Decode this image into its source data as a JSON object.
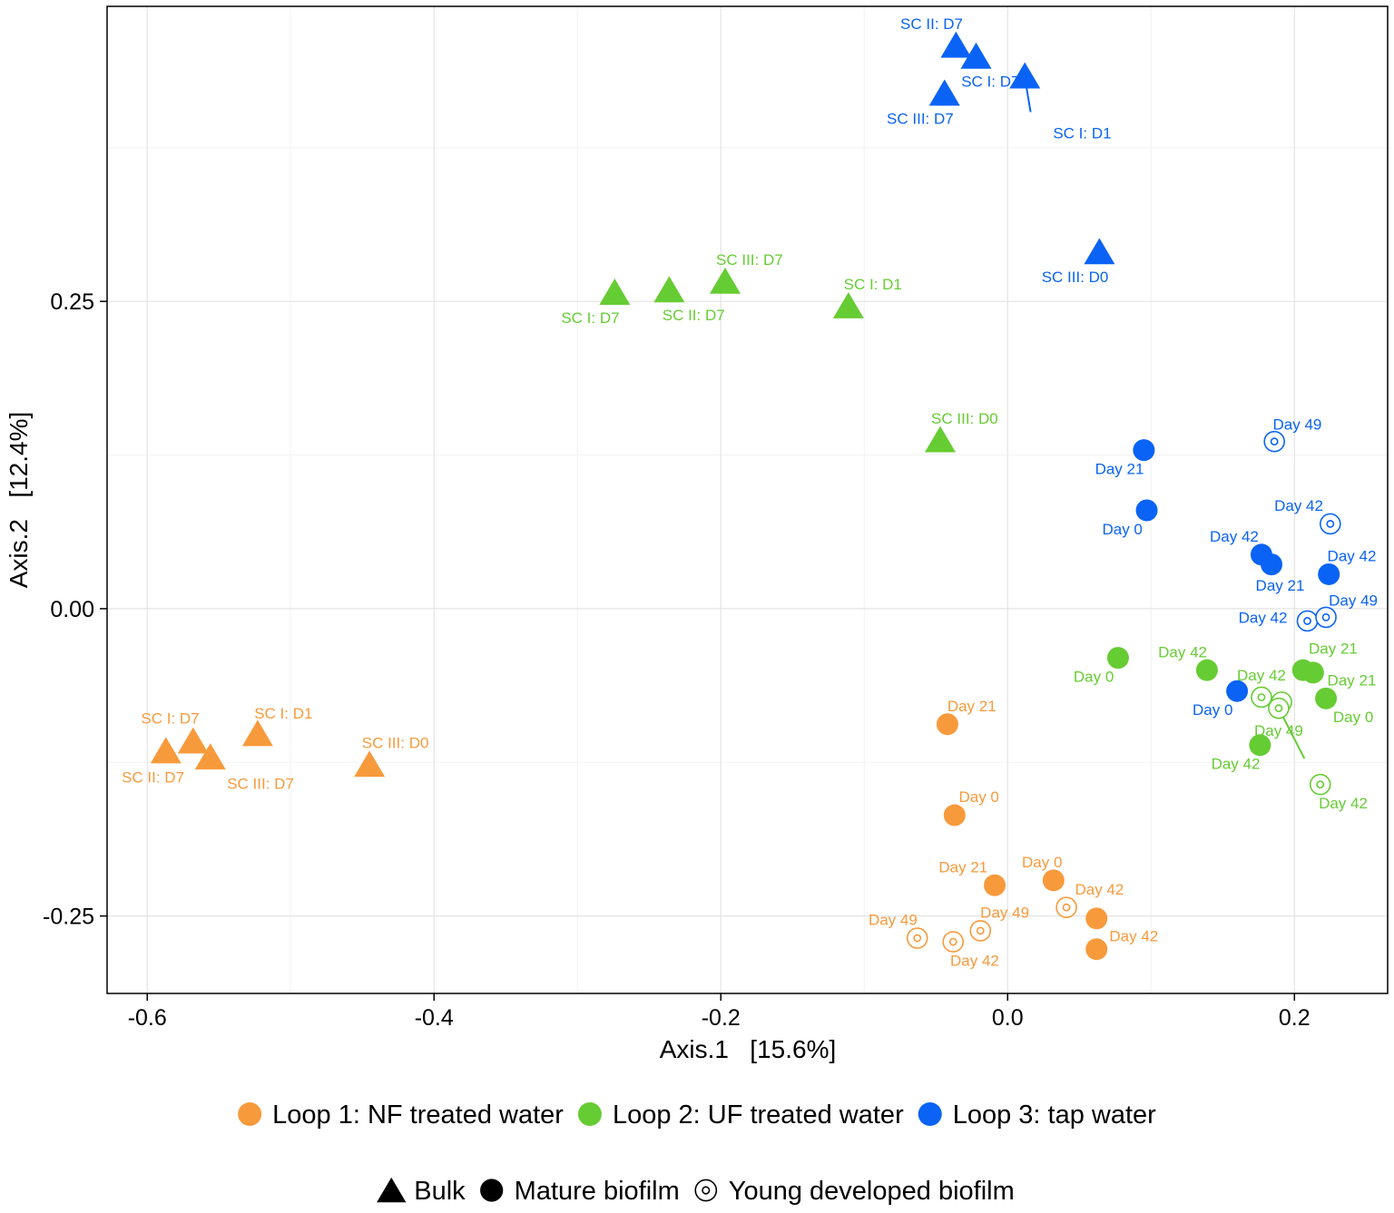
{
  "colors": {
    "orange": "#F79A3C",
    "green": "#66CC33",
    "blue": "#0A63F5"
  },
  "chart_data": {
    "type": "scatter",
    "title": "",
    "xlabel": "Axis.1   [15.6%]",
    "ylabel": "Axis.2   [12.4%]",
    "xlim": [
      -0.628,
      0.265
    ],
    "ylim": [
      -0.313,
      0.49
    ],
    "x_ticks": [
      {
        "v": -0.6,
        "label": "-0.6"
      },
      {
        "v": -0.4,
        "label": "-0.4"
      },
      {
        "v": -0.2,
        "label": "-0.2"
      },
      {
        "v": 0.0,
        "label": "0.0"
      },
      {
        "v": 0.2,
        "label": "0.2"
      }
    ],
    "y_ticks": [
      {
        "v": 0.25,
        "label": "0.25"
      },
      {
        "v": 0.0,
        "label": "0.00"
      },
      {
        "v": -0.25,
        "label": "-0.25"
      }
    ],
    "grid": true,
    "legend_color": {
      "placement": "bottom",
      "items": [
        {
          "label": "Loop 1: NF treated water",
          "color": "orange"
        },
        {
          "label": "Loop 2: UF treated water",
          "color": "green"
        },
        {
          "label": "Loop 3: tap water",
          "color": "blue"
        }
      ]
    },
    "legend_shape": {
      "placement": "bottom",
      "items": [
        {
          "label": "Bulk",
          "shape": "triangle"
        },
        {
          "label": "Mature biofilm",
          "shape": "circle"
        },
        {
          "label": "Young developed biofilm",
          "shape": "ring"
        }
      ]
    },
    "series": [
      {
        "name": "Loop 1: NF treated water",
        "color": "orange",
        "points": [
          {
            "x": -0.587,
            "y": -0.117,
            "shape": "triangle",
            "label": "SC II: D7",
            "ldx": -0.009,
            "ldy": -0.02
          },
          {
            "x": -0.568,
            "y": -0.109,
            "shape": "triangle",
            "label": "SC I: D7",
            "ldx": -0.016,
            "ldy": 0.02
          },
          {
            "x": -0.556,
            "y": -0.122,
            "shape": "triangle",
            "label": "SC III: D7",
            "ldx": 0.035,
            "ldy": -0.02
          },
          {
            "x": -0.523,
            "y": -0.103,
            "shape": "triangle",
            "label": "SC I: D1",
            "ldx": 0.018,
            "ldy": 0.018
          },
          {
            "x": -0.445,
            "y": -0.128,
            "shape": "triangle",
            "label": "SC III: D0",
            "ldx": 0.018,
            "ldy": 0.019
          },
          {
            "x": -0.042,
            "y": -0.094,
            "shape": "circle",
            "label": "Day 21",
            "ldx": 0.017,
            "ldy": 0.015
          },
          {
            "x": -0.037,
            "y": -0.168,
            "shape": "circle",
            "label": "Day 0",
            "ldx": 0.017,
            "ldy": 0.015
          },
          {
            "x": -0.009,
            "y": -0.225,
            "shape": "circle",
            "label": "Day 21",
            "ldx": -0.022,
            "ldy": 0.015
          },
          {
            "x": 0.032,
            "y": -0.221,
            "shape": "circle",
            "label": "Day 0",
            "ldx": -0.008,
            "ldy": 0.015
          },
          {
            "x": 0.062,
            "y": -0.252,
            "shape": "circle",
            "label": "Day 42",
            "ldx": 0.002,
            "ldy": 0.024
          },
          {
            "x": 0.062,
            "y": -0.277,
            "shape": "circle",
            "label": "Day 42",
            "ldx": 0.026,
            "ldy": 0.011
          },
          {
            "x": -0.063,
            "y": -0.268,
            "shape": "ring",
            "label": "Day 49",
            "ldx": -0.017,
            "ldy": 0.015
          },
          {
            "x": -0.038,
            "y": -0.271,
            "shape": "ring",
            "label": "Day 42",
            "ldx": 0.015,
            "ldy": -0.015
          },
          {
            "x": -0.019,
            "y": -0.262,
            "shape": "ring",
            "label": "Day 49",
            "ldx": 0.017,
            "ldy": 0.015
          },
          {
            "x": 0.041,
            "y": -0.243,
            "shape": "ring",
            "label": "",
            "ldx": 0.0,
            "ldy": 0.0
          }
        ]
      },
      {
        "name": "Loop 2: UF treated water",
        "color": "green",
        "points": [
          {
            "x": -0.274,
            "y": 0.256,
            "shape": "triangle",
            "label": "SC I: D7",
            "ldx": -0.017,
            "ldy": -0.019
          },
          {
            "x": -0.236,
            "y": 0.258,
            "shape": "triangle",
            "label": "SC II: D7",
            "ldx": 0.017,
            "ldy": -0.019
          },
          {
            "x": -0.197,
            "y": 0.265,
            "shape": "triangle",
            "label": "SC III: D7",
            "ldx": 0.017,
            "ldy": 0.019
          },
          {
            "x": -0.111,
            "y": 0.245,
            "shape": "triangle",
            "label": "SC I: D1",
            "ldx": 0.017,
            "ldy": 0.019
          },
          {
            "x": -0.047,
            "y": 0.136,
            "shape": "triangle",
            "label": "SC III: D0",
            "ldx": 0.017,
            "ldy": 0.019
          },
          {
            "x": 0.077,
            "y": -0.04,
            "shape": "circle",
            "label": "Day 0",
            "ldx": -0.017,
            "ldy": -0.015
          },
          {
            "x": 0.139,
            "y": -0.05,
            "shape": "circle",
            "label": "Day 42",
            "ldx": -0.017,
            "ldy": 0.015
          },
          {
            "x": 0.176,
            "y": -0.111,
            "shape": "circle",
            "label": "Day 42",
            "ldx": -0.017,
            "ldy": -0.015
          },
          {
            "x": 0.206,
            "y": -0.05,
            "shape": "circle",
            "label": "Day 21",
            "ldx": 0.021,
            "ldy": 0.018
          },
          {
            "x": 0.213,
            "y": -0.052,
            "shape": "circle",
            "label": "Day 21",
            "ldx": 0.027,
            "ldy": -0.006
          },
          {
            "x": 0.222,
            "y": -0.073,
            "shape": "circle",
            "label": "Day 0",
            "ldx": 0.019,
            "ldy": -0.015
          },
          {
            "x": 0.177,
            "y": -0.072,
            "shape": "ring",
            "label": "Day 42",
            "ldx": 0.0,
            "ldy": 0.018
          },
          {
            "x": 0.191,
            "y": -0.076,
            "shape": "ring",
            "label": "",
            "ldx": 0.0,
            "ldy": 0.0
          },
          {
            "x": 0.189,
            "y": -0.081,
            "shape": "ring",
            "label": "Day 49",
            "ldx": 0.0,
            "ldy": -0.018
          },
          {
            "x": 0.218,
            "y": -0.143,
            "shape": "ring",
            "label": "Day 42",
            "ldx": 0.016,
            "ldy": -0.015
          }
        ]
      },
      {
        "name": "Loop 3: tap water",
        "color": "blue",
        "points": [
          {
            "x": -0.036,
            "y": 0.457,
            "shape": "triangle",
            "label": "SC II: D7",
            "ldx": -0.017,
            "ldy": 0.019
          },
          {
            "x": -0.022,
            "y": 0.448,
            "shape": "triangle",
            "label": "SC I: D7",
            "ldx": 0.01,
            "ldy": -0.019
          },
          {
            "x": -0.044,
            "y": 0.418,
            "shape": "triangle",
            "label": "SC III: D7",
            "ldx": -0.017,
            "ldy": -0.019
          },
          {
            "x": 0.012,
            "y": 0.432,
            "shape": "triangle",
            "label": "SC I: D1",
            "ldx": 0.04,
            "ldy": -0.045
          },
          {
            "x": 0.064,
            "y": 0.289,
            "shape": "triangle",
            "label": "SC III: D0",
            "ldx": -0.017,
            "ldy": -0.019
          },
          {
            "x": 0.095,
            "y": 0.129,
            "shape": "circle",
            "label": "Day 21",
            "ldx": -0.017,
            "ldy": -0.015
          },
          {
            "x": 0.097,
            "y": 0.08,
            "shape": "circle",
            "label": "Day 0",
            "ldx": -0.017,
            "ldy": -0.015
          },
          {
            "x": 0.177,
            "y": 0.044,
            "shape": "circle",
            "label": "Day 42",
            "ldx": -0.019,
            "ldy": 0.015
          },
          {
            "x": 0.184,
            "y": 0.036,
            "shape": "circle",
            "label": "Day 21",
            "ldx": 0.006,
            "ldy": -0.017
          },
          {
            "x": 0.224,
            "y": 0.028,
            "shape": "circle",
            "label": "Day 42",
            "ldx": 0.016,
            "ldy": 0.015
          },
          {
            "x": 0.16,
            "y": -0.067,
            "shape": "circle",
            "label": "Day 0",
            "ldx": -0.017,
            "ldy": -0.015
          },
          {
            "x": 0.186,
            "y": 0.136,
            "shape": "ring",
            "label": "Day 49",
            "ldx": 0.016,
            "ldy": 0.014
          },
          {
            "x": 0.225,
            "y": 0.069,
            "shape": "ring",
            "label": "Day 42",
            "ldx": -0.022,
            "ldy": 0.015
          },
          {
            "x": 0.209,
            "y": -0.01,
            "shape": "ring",
            "label": "Day 42",
            "ldx": -0.031,
            "ldy": 0.003
          },
          {
            "x": 0.222,
            "y": -0.007,
            "shape": "ring",
            "label": "Day 49",
            "ldx": 0.019,
            "ldy": 0.014
          }
        ]
      }
    ],
    "leader_lines": [
      {
        "color": "blue",
        "from": [
          0.012,
          0.432
        ],
        "to": [
          0.016,
          0.404
        ]
      },
      {
        "color": "green",
        "from": [
          0.189,
          -0.081
        ],
        "to": [
          0.207,
          -0.122
        ]
      }
    ]
  }
}
